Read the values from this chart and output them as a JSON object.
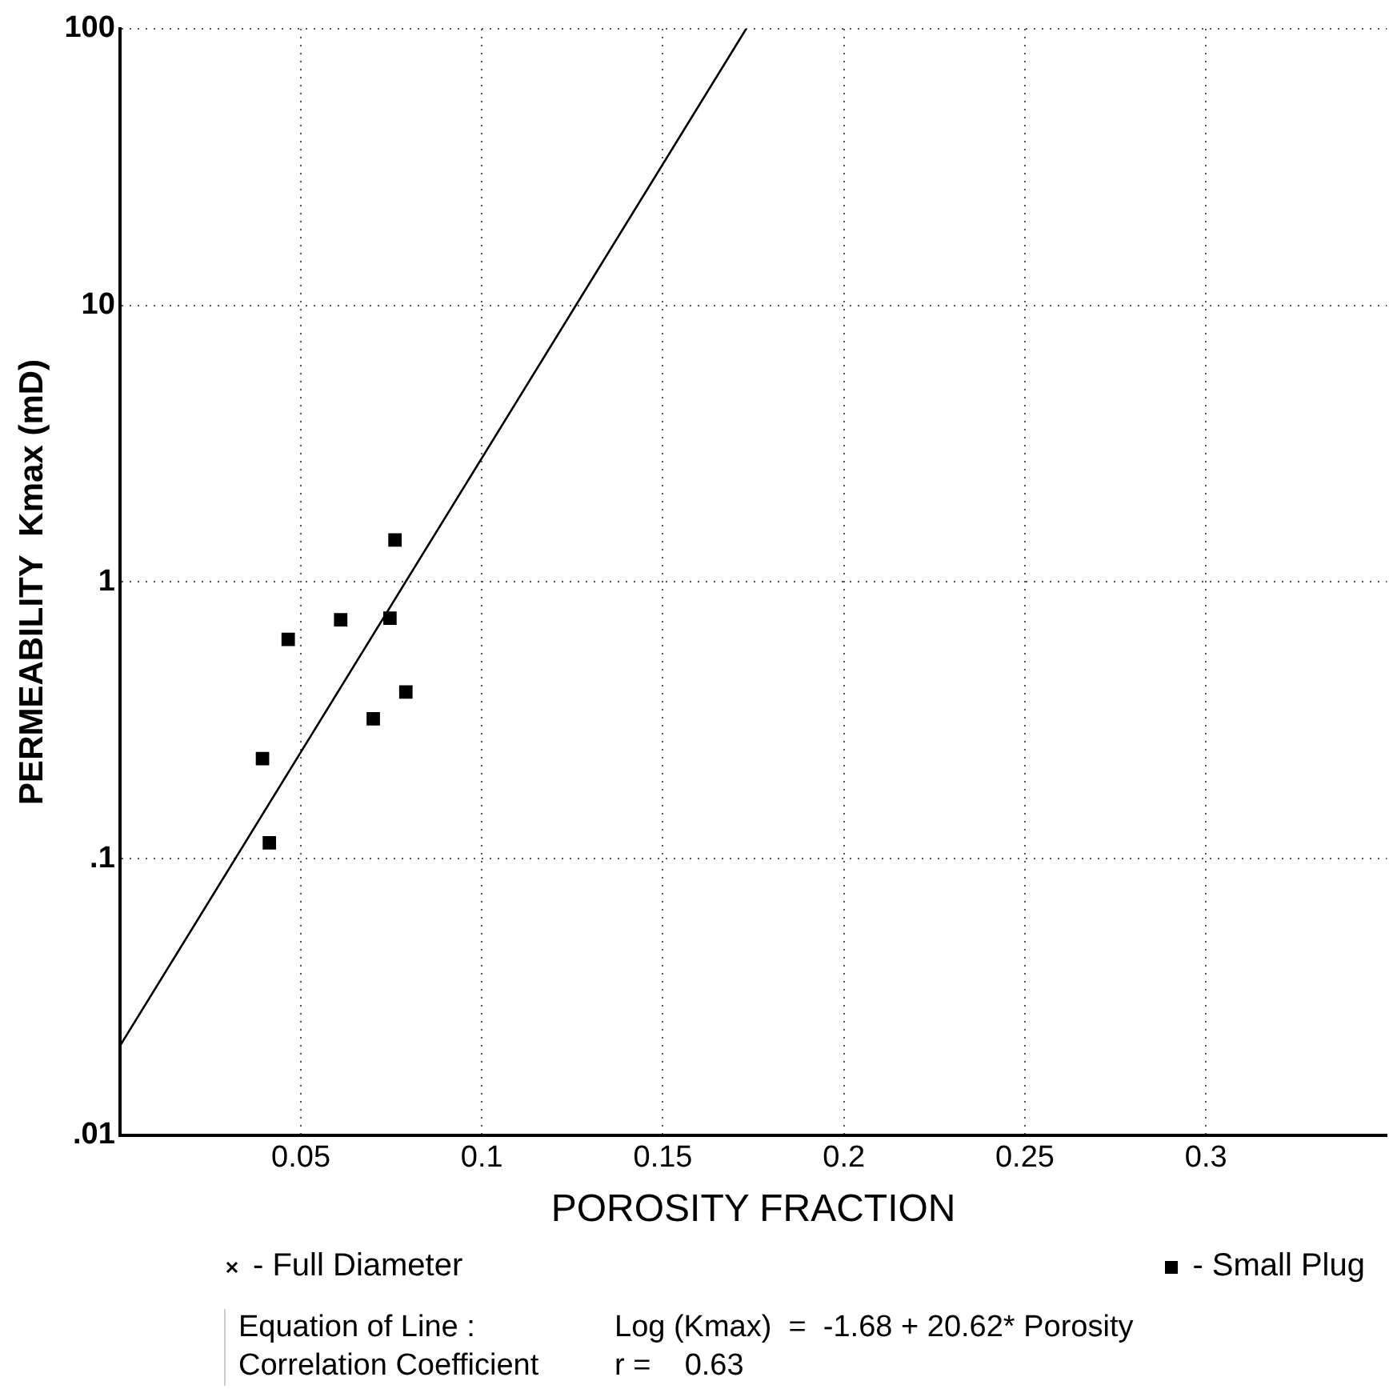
{
  "chart_data": {
    "type": "scatter",
    "xlabel": "POROSITY FRACTION",
    "ylabel": "PERMEABILITY  Kmax (mD)",
    "log": "y",
    "grid": true,
    "legend": "bottom",
    "xlim": [
      0,
      0.35
    ],
    "xticks": [
      0.05,
      0.1,
      0.15,
      0.2,
      0.25,
      0.3
    ],
    "ylim": [
      0.01,
      100
    ],
    "yticks": [
      {
        "value": 0.01,
        "label": ".01"
      },
      {
        "value": 0.1,
        "label": ".1"
      },
      1,
      10,
      100
    ],
    "series": [
      {
        "type": "line",
        "color": "#000000",
        "marker": "none",
        "x": [
          0,
          0.173
        ],
        "values": [
          0.021,
          100
        ]
      },
      {
        "name": "- Full Diameter",
        "color": "#000000",
        "marker": "cross"
      },
      {
        "name": "- Small Plug",
        "color": "#000000",
        "marker": "square",
        "x": [
          0.076,
          0.061,
          0.0746,
          0.0465,
          0.079,
          0.07,
          0.0394,
          0.0413
        ],
        "values": [
          1.42,
          0.73,
          0.74,
          0.62,
          0.4,
          0.32,
          0.23,
          0.114
        ]
      }
    ],
    "annotations": [
      "Equation of Line :",
      "Log (Kmax)  =  -1.68 + 20.62* Porosity",
      "Correlation Coefficient",
      "r =    0.63"
    ]
  }
}
